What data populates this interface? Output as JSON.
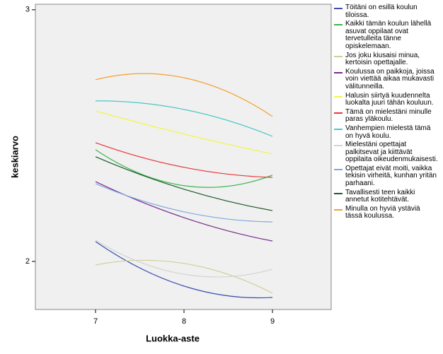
{
  "chart_data": {
    "type": "line",
    "x_label": "Luokka-aste",
    "y_label": "keskiarvo",
    "x": [
      7,
      8,
      9
    ],
    "xlim": [
      6.32,
      9.664
    ],
    "xticks": [
      7,
      8,
      9
    ],
    "ylim": [
      1.809,
      3.022
    ],
    "yticks": [
      2,
      3
    ],
    "series": [
      {
        "name": "Töitäni on esillä koulun tiloissa.",
        "color": "#3a4fb0",
        "values": [
          2.079,
          1.902,
          1.857
        ]
      },
      {
        "name": "Kaikki tämän koulun lähellä asuvat oppilaat ovat tervetulleita tänne opiskelemaan.",
        "color": "#3cb54a",
        "values": [
          2.444,
          2.301,
          2.343
        ]
      },
      {
        "name": "Jos joku kiusaisi minua, kertoisin opettajalle.",
        "color": "#cfcf9a",
        "values": [
          1.986,
          1.992,
          1.874
        ]
      },
      {
        "name": "Koulussa on paikkoja, joissa voin viettää aikaa mukavasti välitunneilla.",
        "color": "#7b2a8c",
        "values": [
          2.317,
          2.174,
          2.081
        ]
      },
      {
        "name": "Halusin siirtyä kuudennelta luokalta juuri tähän kouluun.",
        "color": "#f4f44a",
        "values": [
          2.598,
          2.506,
          2.427
        ]
      },
      {
        "name": "Tämä on mielestäni minulle paras yläkoulu.",
        "color": "#e8363a",
        "values": [
          2.472,
          2.374,
          2.334
        ]
      },
      {
        "name": "Vanhempien mielestä tämä on hyvä koulu.",
        "color": "#4cc8c4",
        "values": [
          2.638,
          2.604,
          2.497
        ]
      },
      {
        "name": "Mielestäni opettajat palkitsevat ja kiittävät oppilaita oikeudenmukaisesti.",
        "color": "#d4d4d4",
        "values": [
          2.084,
          1.949,
          1.969
        ]
      },
      {
        "name": "Opettajat eivät moiti, vaikka tekisin virheitä, kunhan yritän parhaani.",
        "color": "#7eaae0",
        "values": [
          2.309,
          2.197,
          2.157
        ]
      },
      {
        "name": "Tavallisesti teen kaikki annetut kotitehtävät.",
        "color": "#1b5a2c",
        "values": [
          2.416,
          2.287,
          2.202
        ]
      },
      {
        "name": "Minulla on hyviä ystäviä tässä koulussa.",
        "color": "#f2a030",
        "values": [
          2.722,
          2.73,
          2.576
        ]
      }
    ]
  }
}
